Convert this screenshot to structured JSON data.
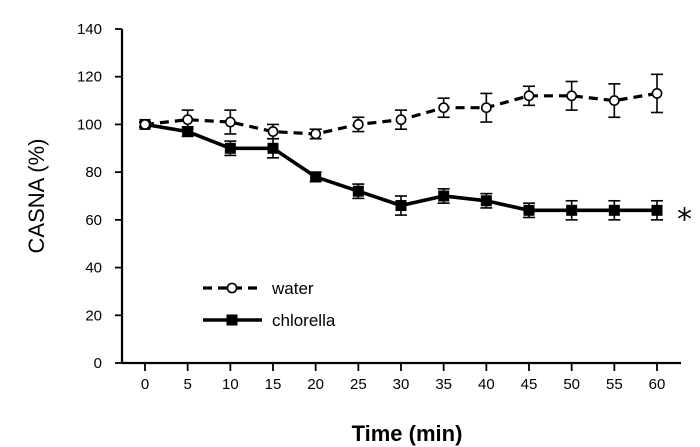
{
  "chart_data": {
    "type": "line",
    "title": "",
    "xlabel": "Time (min)",
    "ylabel": "CASNA (%)",
    "x": [
      0,
      5,
      10,
      15,
      20,
      25,
      30,
      35,
      40,
      45,
      50,
      55,
      60
    ],
    "xlim": [
      0,
      60
    ],
    "ylim": [
      0,
      140
    ],
    "x_ticks": [
      "0",
      "5",
      "10",
      "15",
      "20",
      "25",
      "30",
      "35",
      "40",
      "45",
      "50",
      "55",
      "60"
    ],
    "y_ticks": [
      "0",
      "20",
      "40",
      "60",
      "80",
      "100",
      "120",
      "140"
    ],
    "grid": false,
    "legend_position": "lower-left",
    "series": [
      {
        "name": "water",
        "style": "dashed",
        "marker": "open-circle",
        "color": "#000000",
        "values": [
          100,
          102,
          101,
          97,
          96,
          100,
          102,
          107,
          107,
          112,
          112,
          110,
          113
        ],
        "errors": [
          1,
          4,
          5,
          3,
          2,
          3,
          4,
          4,
          6,
          4,
          6,
          7,
          8
        ]
      },
      {
        "name": "chlorella",
        "style": "solid",
        "marker": "filled-square",
        "color": "#000000",
        "values": [
          100,
          97,
          90,
          90,
          78,
          72,
          66,
          70,
          68,
          64,
          64,
          64,
          64
        ],
        "errors": [
          1,
          2,
          3,
          4,
          2,
          3,
          4,
          3,
          3,
          3,
          4,
          4,
          4
        ]
      }
    ],
    "annotations": [
      {
        "text": "*",
        "series": "chlorella",
        "x": 60
      }
    ]
  }
}
